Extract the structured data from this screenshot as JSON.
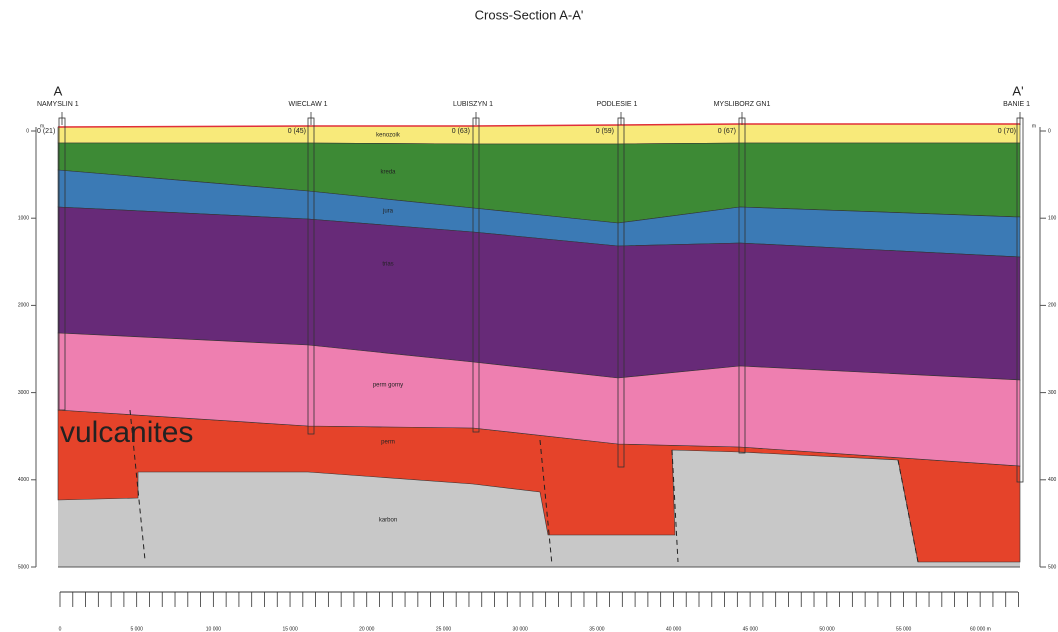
{
  "title": "Cross-Section A-A'",
  "ends": {
    "left": "A",
    "right": "A'"
  },
  "wells": [
    {
      "name": "NAMYSLIN 1",
      "top": "0 (21)"
    },
    {
      "name": "WIECLAW 1",
      "top": "0 (45)"
    },
    {
      "name": "LUBISZYN 1",
      "top": "0 (63)"
    },
    {
      "name": "PODLESIE 1",
      "top": "0 (59)"
    },
    {
      "name": "MYSLIBORZ GN1",
      "top": "0 (67)"
    },
    {
      "name": "BANIE 1",
      "top": "0 (70)"
    }
  ],
  "layers": [
    "kenozoik",
    "kreda",
    "jura",
    "trias",
    "perm gorny",
    "perm",
    "karbon"
  ],
  "annotation": "vulcanites",
  "depth_axis": {
    "unit": "m",
    "labels": [
      "0",
      "1000",
      "2000",
      "3000",
      "4000",
      "5000"
    ]
  },
  "right_axis": {
    "unit": "m",
    "labels": [
      "0",
      "100",
      "200",
      "300",
      "400",
      "500"
    ]
  },
  "distance_scale": {
    "labels": [
      "0",
      "5 000",
      "10 000",
      "15 000",
      "20 000",
      "25 000",
      "30 000",
      "35 000",
      "40 000",
      "45 000",
      "50 000",
      "55 000",
      "60 000 m"
    ]
  }
}
